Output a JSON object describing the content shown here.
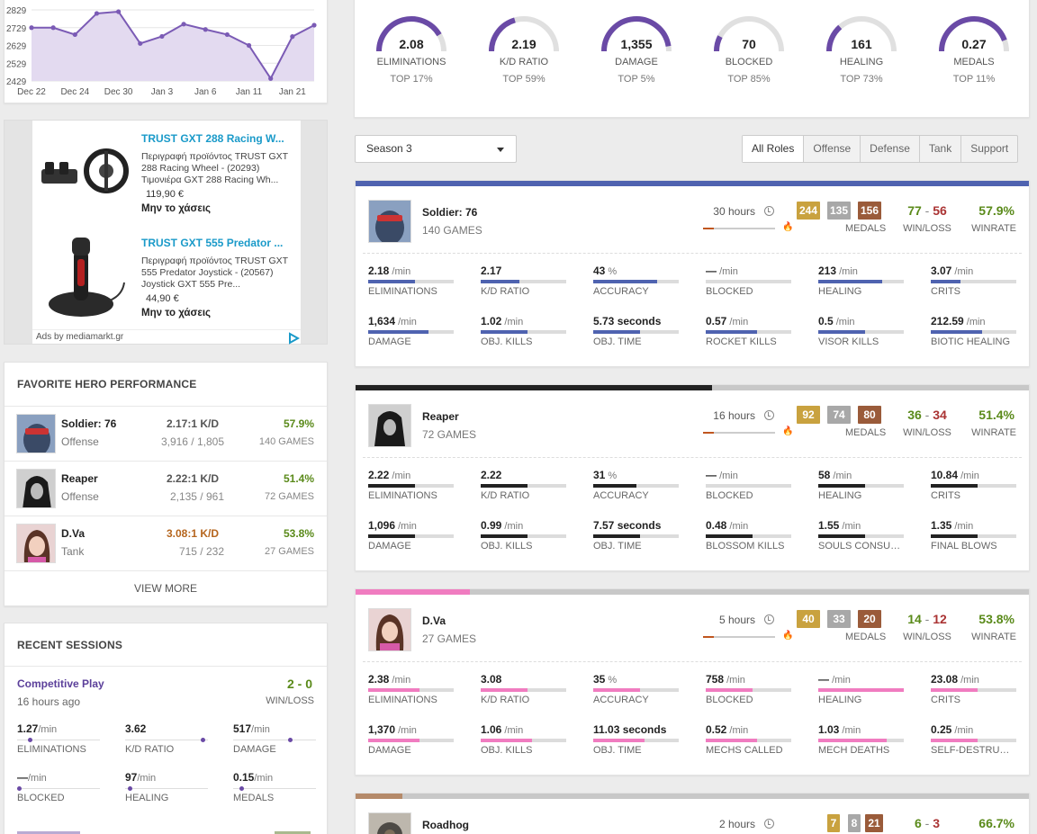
{
  "colors": {
    "accent": "#6a4aa6",
    "win": "#5a8a1a",
    "loss": "#aa3333",
    "medal_gold": "#c9a23f",
    "medal_silver": "#a8a8a8",
    "medal_bronze": "#9a5b3a",
    "link": "#1a9ac9"
  },
  "chart_data": {
    "type": "area",
    "x": [
      "Dec 22",
      "Dec 23",
      "Dec 24",
      "Dec 27",
      "Dec 30",
      "Jan 1",
      "Jan 3",
      "Jan 5",
      "Jan 6",
      "Jan 9",
      "Jan 11",
      "Jan 12",
      "Jan 21",
      "Jan 23"
    ],
    "values": [
      2729,
      2729,
      2690,
      2809,
      2819,
      2640,
      2680,
      2749,
      2719,
      2690,
      2629,
      2443,
      2679,
      2743
    ],
    "x_tick_labels": [
      "Dec 22",
      "Dec 24",
      "Dec 30",
      "Jan 3",
      "Jan 6",
      "Jan 11",
      "Jan 21"
    ],
    "y_tick_labels": [
      "2829",
      "2729",
      "2629",
      "2529",
      "2429"
    ],
    "ylim": [
      2429,
      2829
    ],
    "grid": true,
    "color": "#7b5bb5",
    "fill": "#e3daf0"
  },
  "ad": {
    "items": [
      {
        "title": "TRUST GXT 288 Racing W...",
        "desc": "Περιγραφή προϊόντος TRUST GXT 288 Racing Wheel - (20293) Τιμονιέρα GXT 288 Racing Wh...",
        "price": "119,90 €",
        "cta": "Μην το χάσεις"
      },
      {
        "title": "TRUST GXT 555 Predator ...",
        "desc": "Περιγραφή προϊόντος TRUST GXT 555 Predator Joystick - (20567) Joystick GXT 555 Pre...",
        "price": "44,90 €",
        "cta": "Μην το χάσεις"
      }
    ],
    "footer": "Ads by mediamarkt.gr"
  },
  "favorites": {
    "title": "FAVORITE HERO PERFORMANCE",
    "heroes": [
      {
        "name": "Soldier: 76",
        "role": "Offense",
        "kd": "2.17:1 K/D",
        "kills": "3,916 / 1,805",
        "winrate": "57.9%",
        "games": "140 GAMES",
        "kd_color": "#555555"
      },
      {
        "name": "Reaper",
        "role": "Offense",
        "kd": "2.22:1 K/D",
        "kills": "2,135 / 961",
        "winrate": "51.4%",
        "games": "72 GAMES",
        "kd_color": "#555555"
      },
      {
        "name": "D.Va",
        "role": "Tank",
        "kd": "3.08:1 K/D",
        "kills": "715 / 232",
        "winrate": "53.8%",
        "games": "27 GAMES",
        "kd_color": "#b5651d"
      }
    ],
    "view_more": "VIEW MORE"
  },
  "sessions": {
    "title": "RECENT SESSIONS",
    "items": [
      {
        "mode": "Competitive Play",
        "ago": "16 hours ago",
        "score": "2 - 0",
        "score_label": "WIN/LOSS",
        "stats": [
          {
            "value": "1.27",
            "unit": "/min",
            "label": "ELIMINATIONS",
            "level": 0.15
          },
          {
            "value": "3.62",
            "unit": "",
            "label": "K/D RATIO",
            "level": 0.95
          },
          {
            "value": "517",
            "unit": "/min",
            "label": "DAMAGE",
            "level": 0.7
          },
          {
            "value": "—",
            "unit": "/min",
            "label": "BLOCKED",
            "level": 0.02
          },
          {
            "value": "97",
            "unit": "/min",
            "label": "HEALING",
            "level": 0.05
          },
          {
            "value": "0.15",
            "unit": "/min",
            "label": "MEDALS",
            "level": 0.1
          }
        ]
      }
    ]
  },
  "overview": {
    "stats": [
      {
        "value": "2.08",
        "label": "ELIMINATIONS",
        "rank": "TOP 17%",
        "level": 0.83
      },
      {
        "value": "2.19",
        "label": "K/D RATIO",
        "rank": "TOP 59%",
        "level": 0.41
      },
      {
        "value": "1,355",
        "label": "DAMAGE",
        "rank": "TOP 5%",
        "level": 0.95
      },
      {
        "value": "70",
        "label": "BLOCKED",
        "rank": "TOP 85%",
        "level": 0.15
      },
      {
        "value": "161",
        "label": "HEALING",
        "rank": "TOP 73%",
        "level": 0.27
      },
      {
        "value": "0.27",
        "label": "MEDALS",
        "rank": "TOP 11%",
        "level": 0.89
      }
    ]
  },
  "filters": {
    "season": "Season 3",
    "roles": [
      "All Roles",
      "Offense",
      "Defense",
      "Tank",
      "Support"
    ],
    "selected_role": "All Roles"
  },
  "heroes": [
    {
      "name": "Soldier: 76",
      "games": "140 GAMES",
      "hours": "30 hours",
      "playtime_share": 1.0,
      "streak": 0.15,
      "color": "#4f63b0",
      "medals": [
        "244",
        "135",
        "156"
      ],
      "medals_label": "MEDALS",
      "wins": "77",
      "losses": "56",
      "wl_label": "WIN/LOSS",
      "winrate": "57.9%",
      "winrate_label": "WINRATE",
      "stats": [
        {
          "value": "2.18",
          "unit": "/min",
          "label": "ELIMINATIONS",
          "level": 0.55
        },
        {
          "value": "2.17",
          "unit": "",
          "label": "K/D RATIO",
          "level": 0.45
        },
        {
          "value": "43",
          "unit": "%",
          "label": "ACCURACY",
          "level": 0.75
        },
        {
          "value": "—",
          "unit": "/min",
          "label": "BLOCKED",
          "level": 0.0
        },
        {
          "value": "213",
          "unit": "/min",
          "label": "HEALING",
          "level": 0.75
        },
        {
          "value": "3.07",
          "unit": "/min",
          "label": "CRITS",
          "level": 0.35
        },
        {
          "value": "1,634",
          "unit": "/min",
          "label": "DAMAGE",
          "level": 0.7
        },
        {
          "value": "1.02",
          "unit": "/min",
          "label": "OBJ. KILLS",
          "level": 0.55
        },
        {
          "value": "5.73 seconds",
          "unit": "",
          "label": "OBJ. TIME",
          "level": 0.55
        },
        {
          "value": "0.57",
          "unit": "/min",
          "label": "ROCKET KILLS",
          "level": 0.6
        },
        {
          "value": "0.5",
          "unit": "/min",
          "label": "VISOR KILLS",
          "level": 0.55
        },
        {
          "value": "212.59",
          "unit": "/min",
          "label": "BIOTIC HEALING",
          "level": 0.6
        }
      ]
    },
    {
      "name": "Reaper",
      "games": "72 GAMES",
      "hours": "16 hours",
      "playtime_share": 0.53,
      "streak": 0.15,
      "color": "#222222",
      "medals": [
        "92",
        "74",
        "80"
      ],
      "medals_label": "MEDALS",
      "wins": "36",
      "losses": "34",
      "wl_label": "WIN/LOSS",
      "winrate": "51.4%",
      "winrate_label": "WINRATE",
      "stats": [
        {
          "value": "2.22",
          "unit": "/min",
          "label": "ELIMINATIONS",
          "level": 0.55
        },
        {
          "value": "2.22",
          "unit": "",
          "label": "K/D RATIO",
          "level": 0.55
        },
        {
          "value": "31",
          "unit": "%",
          "label": "ACCURACY",
          "level": 0.5
        },
        {
          "value": "—",
          "unit": "/min",
          "label": "BLOCKED",
          "level": 0.0
        },
        {
          "value": "58",
          "unit": "/min",
          "label": "HEALING",
          "level": 0.55
        },
        {
          "value": "10.84",
          "unit": "/min",
          "label": "CRITS",
          "level": 0.55
        },
        {
          "value": "1,096",
          "unit": "/min",
          "label": "DAMAGE",
          "level": 0.55
        },
        {
          "value": "0.99",
          "unit": "/min",
          "label": "OBJ. KILLS",
          "level": 0.55
        },
        {
          "value": "7.57 seconds",
          "unit": "",
          "label": "OBJ. TIME",
          "level": 0.55
        },
        {
          "value": "0.48",
          "unit": "/min",
          "label": "BLOSSOM KILLS",
          "level": 0.55
        },
        {
          "value": "1.55",
          "unit": "/min",
          "label": "SOULS CONSUM...",
          "level": 0.55
        },
        {
          "value": "1.35",
          "unit": "/min",
          "label": "FINAL BLOWS",
          "level": 0.55
        }
      ]
    },
    {
      "name": "D.Va",
      "games": "27 GAMES",
      "hours": "5 hours",
      "playtime_share": 0.17,
      "streak": 0.15,
      "color": "#f07cc0",
      "medals": [
        "40",
        "33",
        "20"
      ],
      "medals_label": "MEDALS",
      "wins": "14",
      "losses": "12",
      "wl_label": "WIN/LOSS",
      "winrate": "53.8%",
      "winrate_label": "WINRATE",
      "stats": [
        {
          "value": "2.38",
          "unit": "/min",
          "label": "ELIMINATIONS",
          "level": 0.6
        },
        {
          "value": "3.08",
          "unit": "",
          "label": "K/D RATIO",
          "level": 0.55
        },
        {
          "value": "35",
          "unit": "%",
          "label": "ACCURACY",
          "level": 0.55
        },
        {
          "value": "758",
          "unit": "/min",
          "label": "BLOCKED",
          "level": 0.55
        },
        {
          "value": "—",
          "unit": "/min",
          "label": "HEALING",
          "level": 1.0
        },
        {
          "value": "23.08",
          "unit": "/min",
          "label": "CRITS",
          "level": 0.55
        },
        {
          "value": "1,370",
          "unit": "/min",
          "label": "DAMAGE",
          "level": 0.6
        },
        {
          "value": "1.06",
          "unit": "/min",
          "label": "OBJ. KILLS",
          "level": 0.6
        },
        {
          "value": "11.03 seconds",
          "unit": "",
          "label": "OBJ. TIME",
          "level": 0.6
        },
        {
          "value": "0.52",
          "unit": "/min",
          "label": "MECHS CALLED",
          "level": 0.6
        },
        {
          "value": "1.03",
          "unit": "/min",
          "label": "MECH DEATHS",
          "level": 0.8
        },
        {
          "value": "0.25",
          "unit": "/min",
          "label": "SELF-DESTRUCT ...",
          "level": 0.55
        }
      ]
    },
    {
      "name": "Roadhog",
      "hours": "2 hours",
      "playtime_share": 0.07,
      "color": "#b58a6a",
      "medals": [
        "7",
        "8",
        "21"
      ],
      "wins": "6",
      "losses": "3",
      "winrate": "66.7%"
    }
  ]
}
